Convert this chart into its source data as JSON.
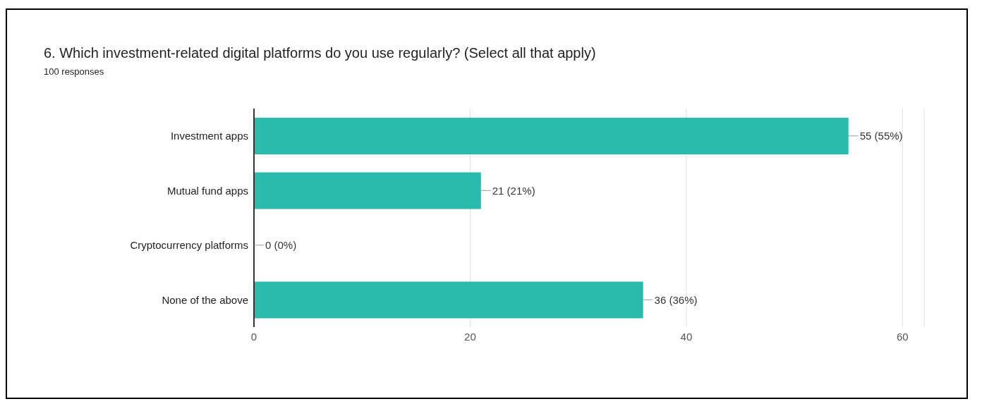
{
  "chart_data": {
    "type": "bar",
    "orientation": "horizontal",
    "title": "6. Which investment-related digital platforms do you use regularly? (Select all that apply)",
    "subtitle": "100 responses",
    "categories": [
      "Investment apps",
      "Mutual fund apps",
      "Cryptocurrency platforms",
      "None of the above"
    ],
    "values": [
      55,
      21,
      0,
      36
    ],
    "color": "#2bbbad",
    "value_labels": [
      "55 (55%)",
      "21 (21%)",
      "0 (0%)",
      "36 (36%)"
    ],
    "xlim": [
      0,
      62
    ],
    "xticks": [
      0,
      20,
      40,
      60
    ],
    "grid": "x"
  }
}
